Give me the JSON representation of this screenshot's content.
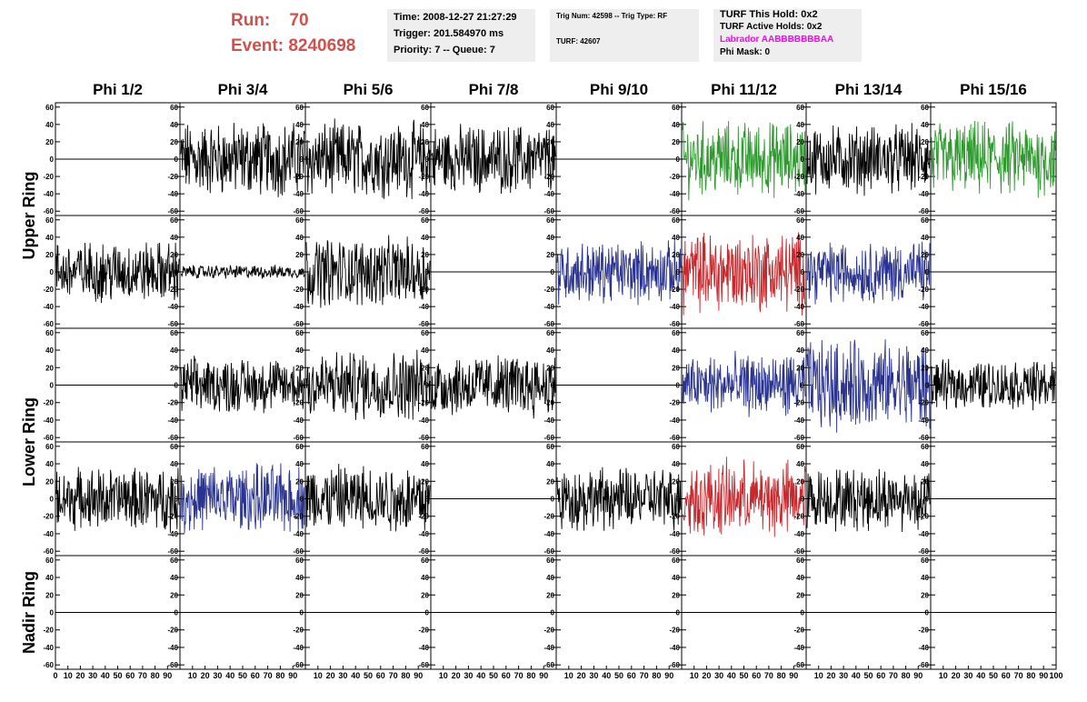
{
  "header": {
    "run_label": "Run:",
    "run_value": "70",
    "event_label": "Event:",
    "event_value": "8240698",
    "time": "Time: 2008-12-27 21:27:29",
    "trigger": "Trigger: 201.584970 ms",
    "priority": "Priority: 7 -- Queue: 7",
    "trig_num": "Trig Num: 42598 -- Trig Type: RF",
    "turf": "TURF: 42607",
    "turf_this_hold": "TURF This Hold: 0x2",
    "turf_active_holds": "TURF Active Holds: 0x2",
    "labrador": "Labrador AABBBBBBBAA",
    "phi_mask": "Phi Mask: 0"
  },
  "colors": {
    "run": "#d0504c",
    "labrador": "#ff00ff",
    "black": "#000000",
    "green": "#2e9a2e",
    "blue": "#2a3490",
    "red": "#c8282c"
  },
  "chart_data": {
    "type": "line",
    "columns": [
      "Phi 1/2",
      "Phi 3/4",
      "Phi 5/6",
      "Phi 7/8",
      "Phi 9/10",
      "Phi 11/12",
      "Phi 13/14",
      "Phi 15/16"
    ],
    "row_labels": [
      "Upper Ring",
      "Lower Ring",
      "Nadir Ring"
    ],
    "ylim": [
      -65,
      65
    ],
    "y_ticks": [
      "60",
      "40",
      "20",
      "0",
      "-20",
      "-40",
      "-60"
    ],
    "xlim": [
      0,
      100
    ],
    "x_tick_labels": [
      "0",
      "10",
      "20",
      "30",
      "40",
      "50",
      "60",
      "70",
      "80",
      "90",
      "100"
    ],
    "panels": [
      [
        "flat",
        "black:22",
        "black:22",
        "black:20",
        "flat",
        "green:22",
        "black:20",
        "green:22"
      ],
      [
        "black:18",
        "black:4",
        "black:20",
        "flat",
        "blue:18",
        "red:24",
        "blue:18",
        "flat"
      ],
      [
        "flat",
        "black:16",
        "black:20",
        "black:18",
        "flat",
        "blue:18",
        "blue:26",
        "black:14"
      ],
      [
        "black:18",
        "blue:20",
        "black:20",
        "flat",
        "black:18",
        "red:22",
        "black:18",
        "flat"
      ],
      [
        "flat",
        "flat",
        "flat",
        "flat",
        "flat",
        "flat",
        "flat",
        "flat"
      ]
    ]
  }
}
